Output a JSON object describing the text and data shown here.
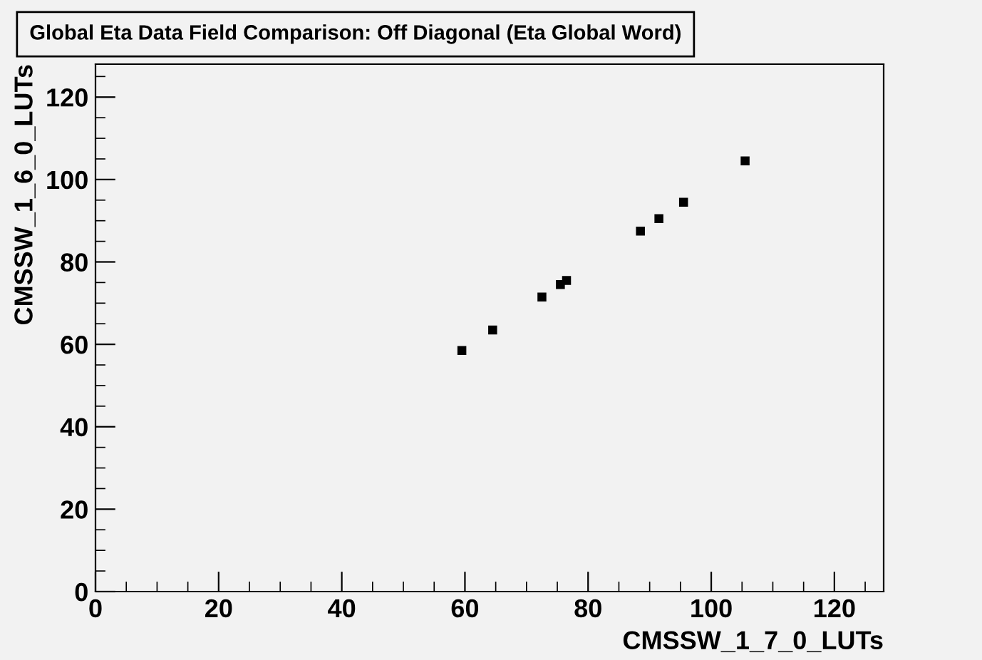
{
  "chart_data": {
    "type": "scatter",
    "title": "Global Eta Data Field Comparison: Off Diagonal (Eta Global Word)",
    "xlabel": "CMSSW_1_7_0_LUTs",
    "ylabel": "CMSSW_1_6_0_LUTs",
    "x": [
      59.5,
      64.5,
      72.5,
      75.5,
      76.5,
      88.5,
      91.5,
      95.5,
      105.5
    ],
    "series": [
      {
        "color": "#000000",
        "values": [
          58.5,
          63.5,
          71.5,
          74.5,
          75.5,
          87.5,
          90.5,
          94.5,
          104.5
        ]
      }
    ],
    "xlim": [
      0,
      128
    ],
    "ylim": [
      0,
      128
    ],
    "xticks": [
      0,
      20,
      40,
      60,
      80,
      100,
      120
    ],
    "yticks": [
      0,
      20,
      40,
      60,
      80,
      100,
      120
    ],
    "marker": "square",
    "grid": false,
    "legend": false
  }
}
